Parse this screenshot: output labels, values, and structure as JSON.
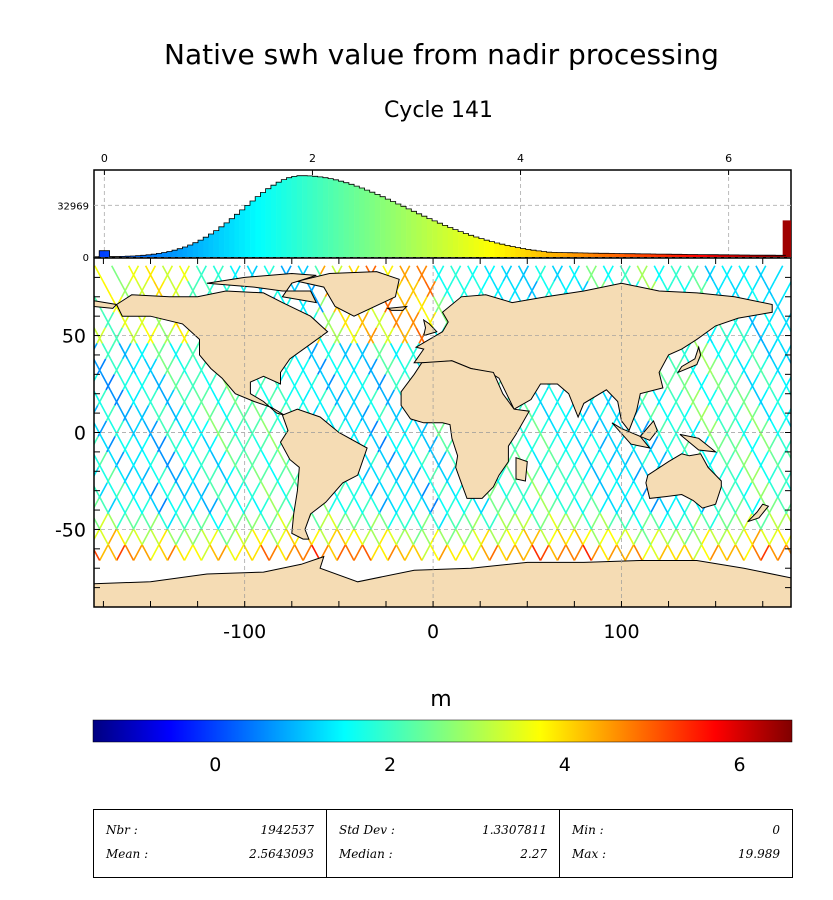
{
  "title": "Native swh value from nadir processing",
  "subtitle": "Cycle 141",
  "chart_data": [
    {
      "type": "histogram",
      "x_ticks": [
        "0",
        "2",
        "4",
        "6"
      ],
      "x_tick_values": [
        0,
        2,
        4,
        6
      ],
      "y_ticks": [
        "0",
        "32969"
      ],
      "y_tick_values": [
        0,
        32969
      ],
      "xlim": [
        -0.1,
        6.6
      ],
      "bin_width": 0.05,
      "peak_x": 1.9,
      "peak_count": 52000,
      "colorscale": "jet",
      "grid": true
    },
    {
      "type": "map",
      "projection": "equirectangular",
      "x_ticks": [
        "-100",
        "0",
        "100"
      ],
      "x_tick_values": [
        -100,
        0,
        100
      ],
      "y_ticks": [
        "50",
        "0",
        "-50"
      ],
      "y_tick_values": [
        50,
        0,
        -50
      ],
      "xlim": [
        -180,
        190
      ],
      "ylim": [
        -90,
        90
      ],
      "data_lat_range": [
        -66,
        82
      ],
      "grid": true,
      "land_color": "#f5dcb4",
      "colorscale": "jet"
    },
    {
      "type": "colorbar",
      "label": "m",
      "ticks": [
        "0",
        "2",
        "4",
        "6"
      ],
      "tick_values": [
        0,
        2,
        4,
        6
      ],
      "range": [
        -1.4,
        6.6
      ]
    }
  ],
  "stats": [
    {
      "left_label": "Nbr :",
      "left_value": "1942537",
      "right_label": "Mean :",
      "right_value": "2.5643093"
    },
    {
      "left_label": "Std Dev :",
      "left_value": "1.3307811",
      "right_label": "Median :",
      "right_value": "2.27"
    },
    {
      "left_label": "Min :",
      "left_value": "0",
      "right_label": "Max :",
      "right_value": "19.989"
    }
  ]
}
